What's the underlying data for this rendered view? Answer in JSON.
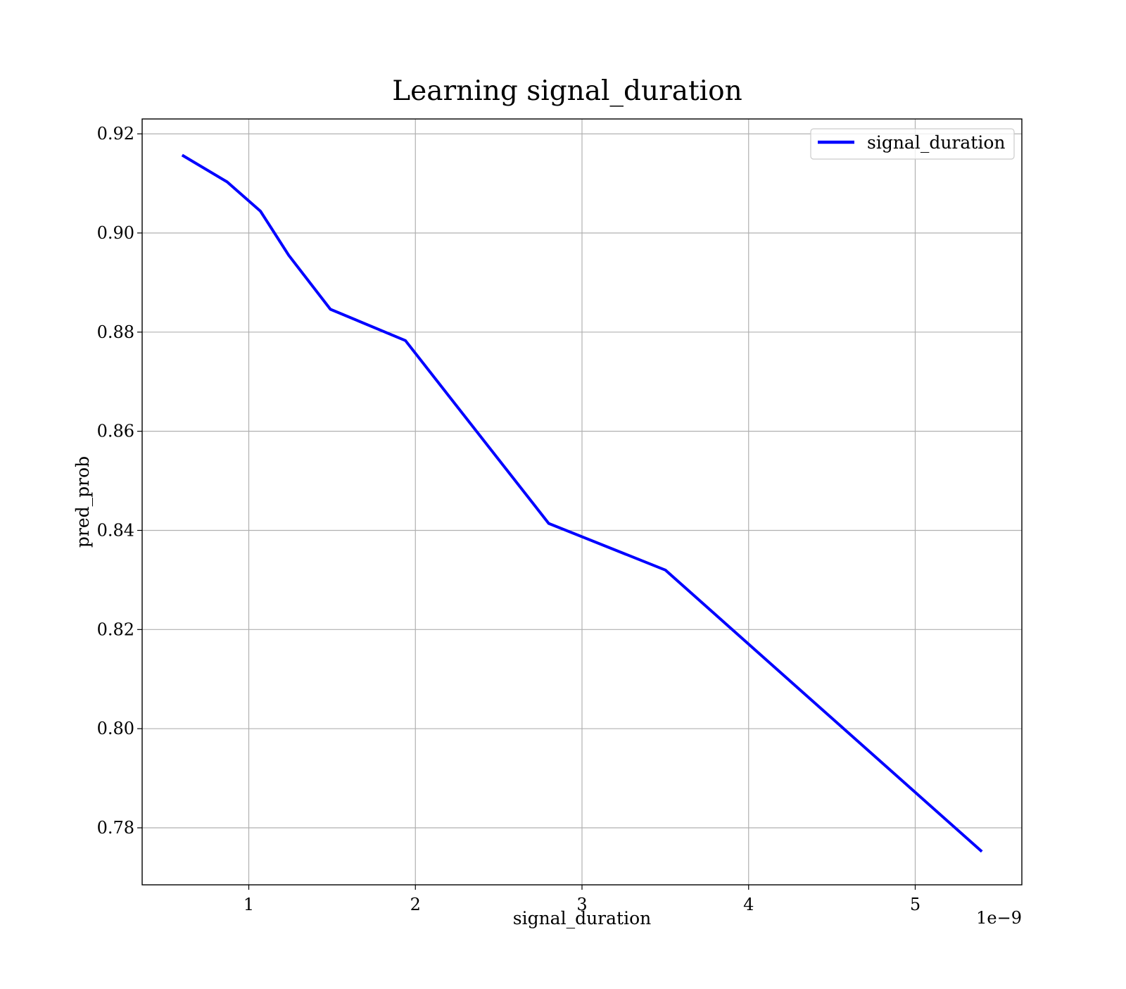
{
  "chart_data": {
    "type": "line",
    "title": "Learning signal_duration",
    "xlabel": "signal_duration",
    "ylabel": "pred_prob",
    "x_offset_text": "1e−9",
    "x_scale": 1e-09,
    "xlim": [
      0.36,
      5.64
    ],
    "ylim": [
      0.7685,
      0.923
    ],
    "xticks": [
      1,
      2,
      3,
      4,
      5
    ],
    "xtick_labels": [
      "1",
      "2",
      "3",
      "4",
      "5"
    ],
    "yticks": [
      0.78,
      0.8,
      0.82,
      0.84,
      0.86,
      0.88,
      0.9,
      0.92
    ],
    "ytick_labels": [
      "0.78",
      "0.80",
      "0.82",
      "0.84",
      "0.86",
      "0.88",
      "0.90",
      "0.92"
    ],
    "grid": true,
    "legend_position": "top-right",
    "series": [
      {
        "name": "signal_duration",
        "color": "#0000ff",
        "x": [
          0.6,
          0.87,
          1.07,
          1.24,
          1.49,
          1.94,
          2.8,
          3.5,
          5.4
        ],
        "y": [
          0.9157,
          0.9103,
          0.9044,
          0.8955,
          0.8846,
          0.8783,
          0.8414,
          0.832,
          0.7752
        ]
      }
    ]
  }
}
